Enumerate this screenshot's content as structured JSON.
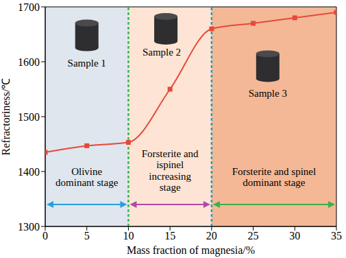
{
  "chart_data": {
    "type": "line",
    "x": [
      0,
      5,
      10,
      15,
      20,
      25,
      30,
      35
    ],
    "values": [
      1435,
      1447,
      1453,
      1550,
      1660,
      1670,
      1680,
      1690
    ],
    "color": "#e5493a",
    "marker": "square",
    "xlim": [
      0,
      35
    ],
    "xticks": [
      0,
      5,
      10,
      15,
      20,
      25,
      30,
      35
    ],
    "ylim": [
      1300,
      1700
    ],
    "yticks": [
      1300,
      1400,
      1500,
      1600,
      1700
    ],
    "x_label": "Mass fraction of magnesia/%",
    "y_label": "Refractoriness/℃",
    "stages": [
      {
        "label": "Olivine dominant stage",
        "sample": "Sample 1",
        "xlim": [
          0,
          10
        ],
        "color": "#dfe6ee",
        "arrow_color": "#2a9fd8"
      },
      {
        "label": "Forsterite and ispinel increasing stage",
        "sample": "Sample 2",
        "xlim": [
          10,
          20
        ],
        "color": "#fde4d4",
        "arrow_color": "#b04aa8"
      },
      {
        "label": "Forsterite and spinel dominant stage",
        "sample": "Sample 3",
        "xlim": [
          20,
          35
        ],
        "color": "#f4b896",
        "arrow_color": "#3cb04a"
      }
    ],
    "boundaries": [
      {
        "x": 10,
        "color": "#3cb55a",
        "line_style": "dashed"
      },
      {
        "x": 20,
        "color": "#1f9fc4",
        "line_style": "dashed"
      }
    ]
  }
}
